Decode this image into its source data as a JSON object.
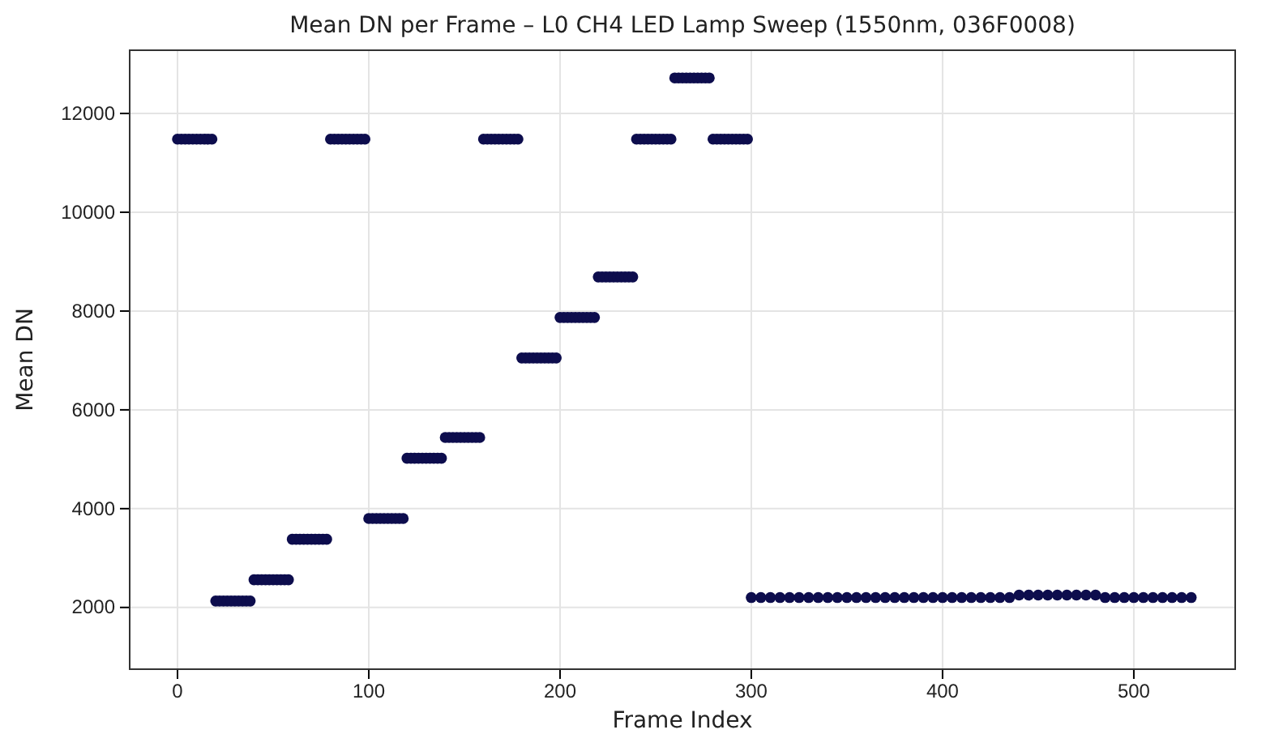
{
  "chart_data": {
    "type": "scatter",
    "title": "Mean DN per Frame – L0 CH4 LED Lamp Sweep (1550nm, 036F0008)",
    "xlabel": "Frame Index",
    "ylabel": "Mean DN",
    "xlim": [
      -25,
      553
    ],
    "xticks": [
      0,
      100,
      200,
      300,
      400,
      500
    ],
    "ylim": [
      750,
      13280
    ],
    "yticks": [
      2000,
      4000,
      6000,
      8000,
      10000,
      12000
    ],
    "grid": true,
    "marker": "circle",
    "series": [
      {
        "color": "#0d0d4d",
        "x": [
          0,
          2,
          4,
          6,
          8,
          10,
          12,
          14,
          16,
          18,
          20,
          22,
          24,
          26,
          28,
          30,
          32,
          34,
          36,
          38,
          40,
          42,
          44,
          46,
          48,
          50,
          52,
          54,
          56,
          58,
          60,
          62,
          64,
          66,
          68,
          70,
          72,
          74,
          76,
          78,
          80,
          82,
          84,
          86,
          88,
          90,
          92,
          94,
          96,
          98,
          100,
          102,
          104,
          106,
          108,
          110,
          112,
          114,
          116,
          118,
          120,
          122,
          124,
          126,
          128,
          130,
          132,
          134,
          136,
          138,
          140,
          142,
          144,
          146,
          148,
          150,
          152,
          154,
          156,
          158,
          160,
          162,
          164,
          166,
          168,
          170,
          172,
          174,
          176,
          178,
          180,
          182,
          184,
          186,
          188,
          190,
          192,
          194,
          196,
          198,
          200,
          202,
          204,
          206,
          208,
          210,
          212,
          214,
          216,
          218,
          220,
          222,
          224,
          226,
          228,
          230,
          232,
          234,
          236,
          238,
          240,
          242,
          244,
          246,
          248,
          250,
          252,
          254,
          256,
          258,
          260,
          262,
          264,
          266,
          268,
          270,
          272,
          274,
          276,
          278,
          280,
          282,
          284,
          286,
          288,
          290,
          292,
          294,
          296,
          298,
          300,
          305,
          310,
          315,
          320,
          325,
          330,
          335,
          340,
          345,
          350,
          355,
          360,
          365,
          370,
          375,
          380,
          385,
          390,
          395,
          400,
          405,
          410,
          415,
          420,
          425,
          430,
          435,
          440,
          445,
          450,
          455,
          460,
          465,
          470,
          475,
          480,
          485,
          490,
          495,
          500,
          505,
          510,
          515,
          520,
          525,
          530
        ],
        "values": [
          11480,
          11480,
          11480,
          11480,
          11480,
          11480,
          11480,
          11480,
          11480,
          11480,
          2130,
          2130,
          2130,
          2130,
          2130,
          2130,
          2130,
          2130,
          2130,
          2130,
          2560,
          2560,
          2560,
          2560,
          2560,
          2560,
          2560,
          2560,
          2560,
          2560,
          3380,
          3380,
          3380,
          3380,
          3380,
          3380,
          3380,
          3380,
          3380,
          3380,
          11480,
          11480,
          11480,
          11480,
          11480,
          11480,
          11480,
          11480,
          11480,
          11480,
          3800,
          3800,
          3800,
          3800,
          3800,
          3800,
          3800,
          3800,
          3800,
          3800,
          5020,
          5020,
          5020,
          5020,
          5020,
          5020,
          5020,
          5020,
          5020,
          5020,
          5440,
          5440,
          5440,
          5440,
          5440,
          5440,
          5440,
          5440,
          5440,
          5440,
          11480,
          11480,
          11480,
          11480,
          11480,
          11480,
          11480,
          11480,
          11480,
          11480,
          7050,
          7050,
          7050,
          7050,
          7050,
          7050,
          7050,
          7050,
          7050,
          7050,
          7870,
          7870,
          7870,
          7870,
          7870,
          7870,
          7870,
          7870,
          7870,
          7870,
          8690,
          8690,
          8690,
          8690,
          8690,
          8690,
          8690,
          8690,
          8690,
          8690,
          11480,
          11480,
          11480,
          11480,
          11480,
          11480,
          11480,
          11480,
          11480,
          11480,
          12720,
          12720,
          12720,
          12720,
          12720,
          12720,
          12720,
          12720,
          12720,
          12720,
          11480,
          11480,
          11480,
          11480,
          11480,
          11480,
          11480,
          11480,
          11480,
          11480,
          2200,
          2200,
          2200,
          2200,
          2200,
          2200,
          2200,
          2200,
          2200,
          2200,
          2200,
          2200,
          2200,
          2200,
          2200,
          2200,
          2200,
          2200,
          2200,
          2200,
          2200,
          2200,
          2200,
          2200,
          2200,
          2200,
          2200,
          2200,
          2250,
          2250,
          2250,
          2250,
          2250,
          2250,
          2250,
          2250,
          2250,
          2200,
          2200,
          2200,
          2200,
          2200,
          2200,
          2200,
          2200,
          2200,
          2200
        ]
      }
    ]
  }
}
